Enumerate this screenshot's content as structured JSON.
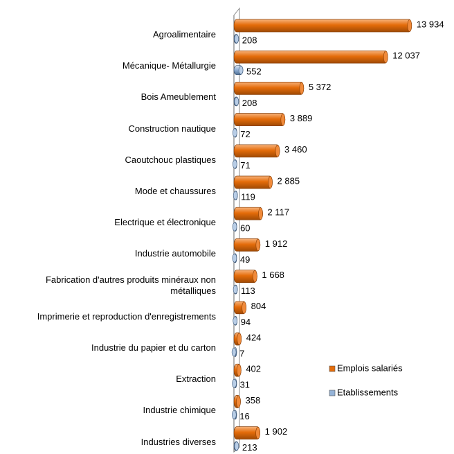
{
  "chart_data": {
    "type": "bar",
    "orientation": "horizontal",
    "categories": [
      "Agroalimentaire",
      "Mécanique- Métallurgie",
      "Bois Ameublement",
      "Construction nautique",
      "Caoutchouc plastiques",
      "Mode et chaussures",
      "Electrique et électronique",
      "Industrie automobile",
      "Fabrication d'autres produits minéraux non métalliques",
      "Imprimerie et reproduction d'enregistrements",
      "Industrie du papier et du carton",
      "Extraction",
      "Industrie chimique",
      "Industries diverses"
    ],
    "series": [
      {
        "name": "Emplois salariés",
        "color": "#e46c0a",
        "values": [
          13934,
          12037,
          5372,
          3889,
          3460,
          2885,
          2117,
          1912,
          1668,
          804,
          424,
          402,
          358,
          1902
        ],
        "value_labels": [
          "13 934",
          "12 037",
          "5 372",
          "3 889",
          "3 460",
          "2 885",
          "2 117",
          "1 912",
          "1 668",
          "804",
          "424",
          "402",
          "358",
          "1 902"
        ]
      },
      {
        "name": "Etablissements",
        "color": "#95b3d7",
        "values": [
          208,
          552,
          208,
          72,
          71,
          119,
          60,
          49,
          113,
          94,
          7,
          31,
          16,
          213
        ]
      }
    ],
    "xlim": [
      0,
      14000
    ],
    "legend": "right"
  }
}
